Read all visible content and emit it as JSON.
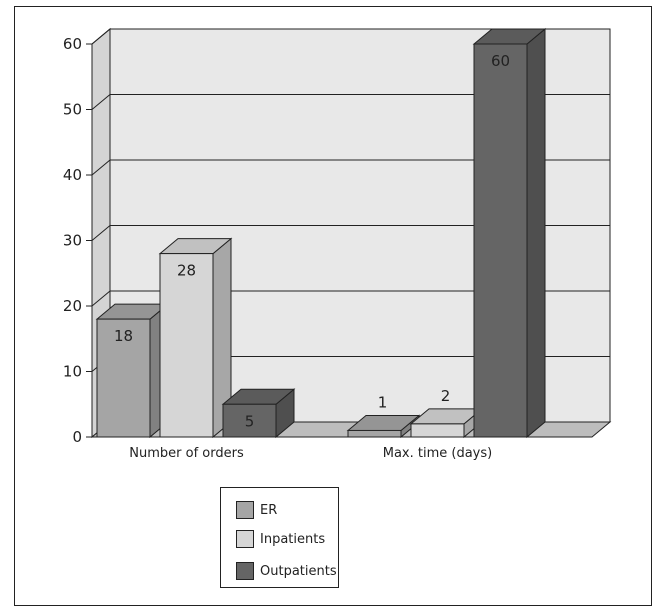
{
  "chart_data": {
    "type": "bar",
    "categories": [
      "Number of orders",
      "Max. time (days)"
    ],
    "series": [
      {
        "name": "ER",
        "values": [
          18,
          1
        ],
        "color": "#a5a5a5"
      },
      {
        "name": "Inpatients",
        "values": [
          28,
          2
        ],
        "color": "#d6d6d6"
      },
      {
        "name": "Outpatients",
        "values": [
          5,
          60
        ],
        "color": "#656565"
      }
    ],
    "ylim": [
      0,
      60
    ],
    "yticks": [
      0,
      10,
      20,
      30,
      40,
      50,
      60
    ],
    "grid": true,
    "legend_placement": "bottom-center",
    "style": "3d-bar"
  }
}
